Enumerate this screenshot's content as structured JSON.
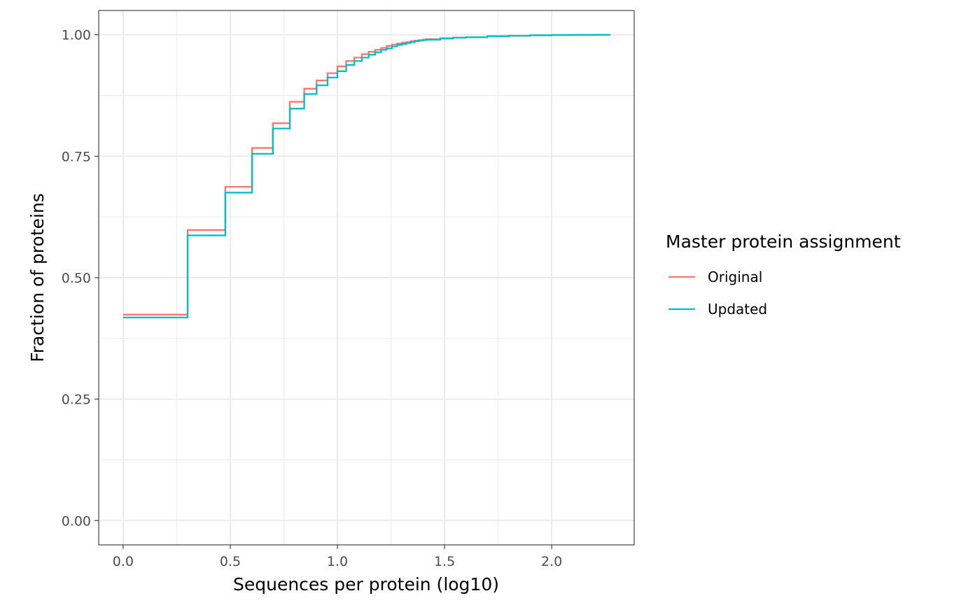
{
  "chart_data": {
    "type": "line",
    "step": true,
    "title": "",
    "xlabel": "Sequences per protein (log10)",
    "ylabel": "Fraction of proteins",
    "xlim": [
      -0.114,
      2.385
    ],
    "ylim": [
      -0.05,
      1.05
    ],
    "xticks": [
      0.0,
      0.5,
      1.0,
      1.5,
      2.0
    ],
    "xtick_labels": [
      "0.0",
      "0.5",
      "1.0",
      "1.5",
      "2.0"
    ],
    "yticks": [
      0.0,
      0.25,
      0.5,
      0.75,
      1.0
    ],
    "ytick_labels": [
      "0.00",
      "0.25",
      "0.50",
      "0.75",
      "1.00"
    ],
    "grid": true,
    "legend": {
      "title": "Master protein assignment",
      "position": "right"
    },
    "series": [
      {
        "name": "Original",
        "color": "#F8766D",
        "x": [
          0.0,
          0.301,
          0.477,
          0.602,
          0.699,
          0.778,
          0.845,
          0.903,
          0.954,
          1.0,
          1.041,
          1.079,
          1.114,
          1.146,
          1.176,
          1.204,
          1.23,
          1.255,
          1.279,
          1.301,
          1.322,
          1.342,
          1.362,
          1.38,
          1.398,
          1.415,
          1.48,
          1.54,
          1.6,
          1.7,
          1.8,
          1.9,
          2.0,
          2.1,
          2.2,
          2.272
        ],
        "y": [
          0.424,
          0.598,
          0.687,
          0.767,
          0.818,
          0.862,
          0.889,
          0.906,
          0.921,
          0.935,
          0.946,
          0.953,
          0.96,
          0.965,
          0.969,
          0.973,
          0.977,
          0.98,
          0.982,
          0.984,
          0.985,
          0.987,
          0.988,
          0.989,
          0.99,
          0.991,
          0.993,
          0.994,
          0.995,
          0.997,
          0.998,
          0.999,
          0.9995,
          0.9997,
          0.9999,
          1.0
        ]
      },
      {
        "name": "Updated",
        "color": "#00BFC4",
        "x": [
          0.0,
          0.301,
          0.477,
          0.602,
          0.699,
          0.778,
          0.845,
          0.903,
          0.954,
          1.0,
          1.041,
          1.079,
          1.114,
          1.146,
          1.176,
          1.204,
          1.23,
          1.255,
          1.279,
          1.301,
          1.322,
          1.342,
          1.362,
          1.38,
          1.398,
          1.415,
          1.48,
          1.54,
          1.6,
          1.7,
          1.8,
          1.9,
          2.0,
          2.1,
          2.2,
          2.272
        ],
        "y": [
          0.418,
          0.587,
          0.675,
          0.755,
          0.807,
          0.848,
          0.878,
          0.896,
          0.912,
          0.925,
          0.938,
          0.946,
          0.953,
          0.959,
          0.964,
          0.969,
          0.972,
          0.976,
          0.979,
          0.981,
          0.983,
          0.985,
          0.987,
          0.988,
          0.989,
          0.99,
          0.992,
          0.994,
          0.995,
          0.997,
          0.998,
          0.999,
          0.9995,
          0.9997,
          0.9999,
          1.0
        ]
      }
    ]
  }
}
